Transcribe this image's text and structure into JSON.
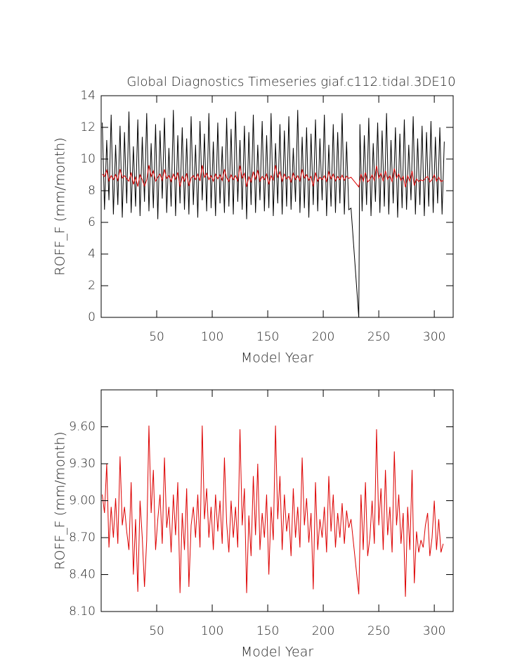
{
  "chart_data": [
    {
      "type": "line",
      "title": "Global Diagnostics Timeseries giaf.c112.tidal.3DE10",
      "xlabel": "Model Year",
      "ylabel": "ROFF_F (mm/month)",
      "xlim": [
        0,
        317
      ],
      "xticks": [
        50,
        100,
        150,
        200,
        250,
        300
      ],
      "ylim": [
        0,
        14
      ],
      "yticks": [
        0,
        2,
        4,
        6,
        8,
        10,
        12,
        14
      ],
      "series": [
        {
          "color": "#000000",
          "x": [
            1,
            3,
            5,
            7,
            9,
            11,
            13,
            15,
            17,
            19,
            21,
            23,
            25,
            27,
            29,
            31,
            33,
            35,
            37,
            39,
            41,
            43,
            45,
            47,
            49,
            51,
            53,
            55,
            57,
            59,
            61,
            63,
            65,
            67,
            69,
            71,
            73,
            75,
            77,
            79,
            81,
            83,
            85,
            87,
            89,
            91,
            93,
            95,
            97,
            99,
            101,
            103,
            105,
            107,
            109,
            111,
            113,
            115,
            117,
            119,
            121,
            123,
            125,
            127,
            129,
            131,
            133,
            135,
            137,
            139,
            141,
            143,
            145,
            147,
            149,
            151,
            153,
            155,
            157,
            159,
            161,
            163,
            165,
            167,
            169,
            171,
            173,
            175,
            177,
            179,
            181,
            183,
            185,
            187,
            189,
            191,
            193,
            195,
            197,
            199,
            201,
            203,
            205,
            207,
            209,
            211,
            213,
            215,
            217,
            219,
            221,
            223,
            225,
            232,
            233,
            235,
            237,
            239,
            241,
            243,
            245,
            247,
            249,
            251,
            253,
            255,
            257,
            259,
            261,
            263,
            265,
            267,
            269,
            271,
            273,
            275,
            277,
            279,
            281,
            283,
            285,
            287,
            289,
            291,
            293,
            295,
            297,
            299,
            301,
            303,
            305,
            307,
            309
          ],
          "values": [
            12.3,
            6.8,
            11.2,
            7.4,
            12.8,
            6.5,
            10.9,
            7.1,
            12.1,
            6.3,
            11.7,
            7.2,
            13.0,
            6.6,
            10.8,
            7.0,
            12.5,
            6.4,
            11.4,
            7.3,
            12.9,
            6.7,
            11.0,
            6.9,
            12.2,
            6.2,
            11.8,
            7.5,
            12.6,
            6.6,
            10.7,
            7.0,
            13.1,
            6.4,
            11.5,
            7.2,
            12.0,
            6.8,
            11.3,
            6.5,
            12.7,
            7.1,
            10.9,
            6.3,
            12.4,
            7.4,
            11.6,
            6.7,
            12.9,
            6.9,
            11.1,
            6.4,
            12.3,
            7.2,
            10.8,
            6.6,
            12.6,
            7.0,
            11.9,
            6.5,
            13.0,
            7.3,
            11.2,
            6.8,
            12.1,
            6.2,
            11.7,
            7.1,
            12.8,
            6.6,
            10.9,
            7.4,
            12.4,
            6.7,
            11.5,
            6.9,
            12.9,
            6.4,
            11.0,
            7.2,
            12.2,
            6.5,
            11.8,
            7.0,
            12.7,
            6.8,
            10.7,
            7.3,
            13.1,
            6.6,
            11.4,
            6.9,
            12.0,
            6.3,
            11.6,
            7.1,
            12.5,
            6.7,
            11.3,
            7.4,
            12.8,
            6.4,
            10.9,
            7.0,
            12.2,
            6.6,
            11.7,
            7.2,
            12.9,
            6.5,
            11.1,
            6.8,
            6.9,
            0,
            12.2,
            6.7,
            11.5,
            7.1,
            12.6,
            6.4,
            11.0,
            7.3,
            12.3,
            6.6,
            11.8,
            7.0,
            12.9,
            6.5,
            11.2,
            7.2,
            12.0,
            6.3,
            11.6,
            6.9,
            12.5,
            6.8,
            10.9,
            7.4,
            12.7,
            6.5,
            11.3,
            7.1,
            12.1,
            6.4,
            11.7,
            7.0,
            12.4,
            6.6,
            11.4,
            7.2,
            12.0,
            6.5,
            11.1
          ]
        },
        {
          "color": "#dd0000",
          "x": [
            1,
            3,
            5,
            7,
            9,
            11,
            13,
            15,
            17,
            19,
            21,
            23,
            25,
            27,
            29,
            31,
            33,
            35,
            37,
            39,
            41,
            43,
            45,
            47,
            49,
            51,
            53,
            55,
            57,
            59,
            61,
            63,
            65,
            67,
            69,
            71,
            73,
            75,
            77,
            79,
            81,
            83,
            85,
            87,
            89,
            91,
            93,
            95,
            97,
            99,
            101,
            103,
            105,
            107,
            109,
            111,
            113,
            115,
            117,
            119,
            121,
            123,
            125,
            127,
            129,
            131,
            133,
            135,
            137,
            139,
            141,
            143,
            145,
            147,
            149,
            151,
            153,
            155,
            157,
            159,
            161,
            163,
            165,
            167,
            169,
            171,
            173,
            175,
            177,
            179,
            181,
            183,
            185,
            187,
            189,
            191,
            193,
            195,
            197,
            199,
            201,
            203,
            205,
            207,
            209,
            211,
            213,
            215,
            217,
            219,
            221,
            223,
            225,
            232,
            234,
            236,
            238,
            240,
            242,
            244,
            246,
            248,
            250,
            252,
            254,
            256,
            258,
            260,
            262,
            264,
            266,
            268,
            270,
            272,
            274,
            276,
            278,
            280,
            282,
            284,
            286,
            288,
            290,
            292,
            294,
            296,
            298,
            300,
            302,
            304,
            306,
            308
          ],
          "values": [
            9.05,
            8.9,
            9.3,
            8.62,
            8.95,
            8.7,
            9.02,
            8.65,
            9.36,
            8.8,
            8.95,
            8.75,
            8.6,
            9.15,
            8.4,
            8.85,
            8.26,
            9.0,
            8.7,
            8.3,
            8.68,
            9.61,
            8.9,
            9.25,
            8.6,
            8.85,
            9.05,
            8.65,
            9.35,
            8.78,
            8.95,
            8.58,
            9.05,
            8.72,
            9.15,
            8.25,
            8.9,
            8.6,
            9.1,
            8.3,
            8.8,
            8.95,
            8.7,
            9.05,
            8.62,
            9.61,
            8.85,
            9.1,
            8.7,
            8.95,
            8.6,
            9.05,
            8.75,
            9.0,
            8.65,
            9.35,
            8.82,
            8.58,
            9.0,
            8.7,
            8.95,
            8.62,
            9.58,
            8.8,
            9.1,
            8.25,
            8.88,
            8.55,
            9.2,
            8.72,
            9.3,
            8.6,
            8.9,
            8.7,
            9.05,
            8.4,
            8.95,
            8.68,
            9.61,
            8.85,
            9.2,
            8.6,
            9.05,
            8.75,
            8.9,
            8.55,
            9.1,
            8.7,
            8.95,
            8.62,
            9.35,
            8.8,
            9.02,
            8.66,
            8.9,
            8.28,
            9.15,
            8.6,
            8.85,
            8.7,
            8.95,
            8.58,
            9.2,
            8.75,
            9.05,
            8.62,
            8.9,
            8.7,
            8.98,
            8.65,
            8.92,
            8.78,
            8.85,
            8.24,
            9.05,
            8.6,
            9.15,
            8.55,
            8.7,
            9.0,
            8.65,
            9.58,
            8.8,
            9.1,
            8.6,
            9.25,
            8.72,
            8.95,
            8.58,
            9.4,
            8.8,
            9.05,
            8.65,
            8.9,
            8.22,
            8.95,
            8.6,
            9.25,
            8.33,
            8.75,
            8.58,
            8.68,
            8.62,
            8.8,
            8.9,
            8.55,
            8.7,
            9.0,
            8.6,
            8.85,
            8.58,
            8.65
          ]
        }
      ]
    },
    {
      "type": "line",
      "xlabel": "Model Year",
      "ylabel": "ROFF_F (mm/month)",
      "xlim": [
        0,
        317
      ],
      "xticks": [
        50,
        100,
        150,
        200,
        250,
        300
      ],
      "ylim": [
        8.1,
        9.9
      ],
      "yticks": [
        {
          "value": 8.1,
          "label": "8.10"
        },
        {
          "value": 8.4,
          "label": "8.40"
        },
        {
          "value": 8.7,
          "label": "8.70"
        },
        {
          "value": 9.0,
          "label": "9.00"
        },
        {
          "value": 9.3,
          "label": "9.30"
        },
        {
          "value": 9.6,
          "label": "9.60"
        }
      ],
      "series": [
        {
          "color": "#dd0000",
          "x": [
            1,
            3,
            5,
            7,
            9,
            11,
            13,
            15,
            17,
            19,
            21,
            23,
            25,
            27,
            29,
            31,
            33,
            35,
            37,
            39,
            41,
            43,
            45,
            47,
            49,
            51,
            53,
            55,
            57,
            59,
            61,
            63,
            65,
            67,
            69,
            71,
            73,
            75,
            77,
            79,
            81,
            83,
            85,
            87,
            89,
            91,
            93,
            95,
            97,
            99,
            101,
            103,
            105,
            107,
            109,
            111,
            113,
            115,
            117,
            119,
            121,
            123,
            125,
            127,
            129,
            131,
            133,
            135,
            137,
            139,
            141,
            143,
            145,
            147,
            149,
            151,
            153,
            155,
            157,
            159,
            161,
            163,
            165,
            167,
            169,
            171,
            173,
            175,
            177,
            179,
            181,
            183,
            185,
            187,
            189,
            191,
            193,
            195,
            197,
            199,
            201,
            203,
            205,
            207,
            209,
            211,
            213,
            215,
            217,
            219,
            221,
            223,
            225,
            232,
            234,
            236,
            238,
            240,
            242,
            244,
            246,
            248,
            250,
            252,
            254,
            256,
            258,
            260,
            262,
            264,
            266,
            268,
            270,
            272,
            274,
            276,
            278,
            280,
            282,
            284,
            286,
            288,
            290,
            292,
            294,
            296,
            298,
            300,
            302,
            304,
            306,
            308
          ],
          "values": [
            9.05,
            8.9,
            9.3,
            8.62,
            8.95,
            8.7,
            9.02,
            8.65,
            9.36,
            8.8,
            8.95,
            8.75,
            8.6,
            9.15,
            8.4,
            8.85,
            8.26,
            9.0,
            8.7,
            8.3,
            8.68,
            9.61,
            8.9,
            9.25,
            8.6,
            8.85,
            9.05,
            8.65,
            9.35,
            8.78,
            8.95,
            8.58,
            9.05,
            8.72,
            9.15,
            8.25,
            8.9,
            8.6,
            9.1,
            8.3,
            8.8,
            8.95,
            8.7,
            9.05,
            8.62,
            9.61,
            8.85,
            9.1,
            8.7,
            8.95,
            8.6,
            9.05,
            8.75,
            9.0,
            8.65,
            9.35,
            8.82,
            8.58,
            9.0,
            8.7,
            8.95,
            8.62,
            9.58,
            8.8,
            9.1,
            8.25,
            8.88,
            8.55,
            9.2,
            8.72,
            9.3,
            8.6,
            8.9,
            8.7,
            9.05,
            8.4,
            8.95,
            8.68,
            9.61,
            8.85,
            9.2,
            8.6,
            9.05,
            8.75,
            8.9,
            8.55,
            9.1,
            8.7,
            8.95,
            8.62,
            9.35,
            8.8,
            9.02,
            8.66,
            8.9,
            8.28,
            9.15,
            8.6,
            8.85,
            8.7,
            8.95,
            8.58,
            9.2,
            8.75,
            9.05,
            8.62,
            8.9,
            8.7,
            8.98,
            8.65,
            8.92,
            8.78,
            8.85,
            8.24,
            9.05,
            8.6,
            9.15,
            8.55,
            8.7,
            9.0,
            8.65,
            9.58,
            8.8,
            9.1,
            8.6,
            9.25,
            8.72,
            8.95,
            8.58,
            9.4,
            8.8,
            9.05,
            8.65,
            8.9,
            8.22,
            8.95,
            8.6,
            9.25,
            8.33,
            8.75,
            8.58,
            8.68,
            8.62,
            8.8,
            8.9,
            8.55,
            8.7,
            9.0,
            8.6,
            8.85,
            8.58,
            8.65
          ]
        }
      ]
    }
  ]
}
